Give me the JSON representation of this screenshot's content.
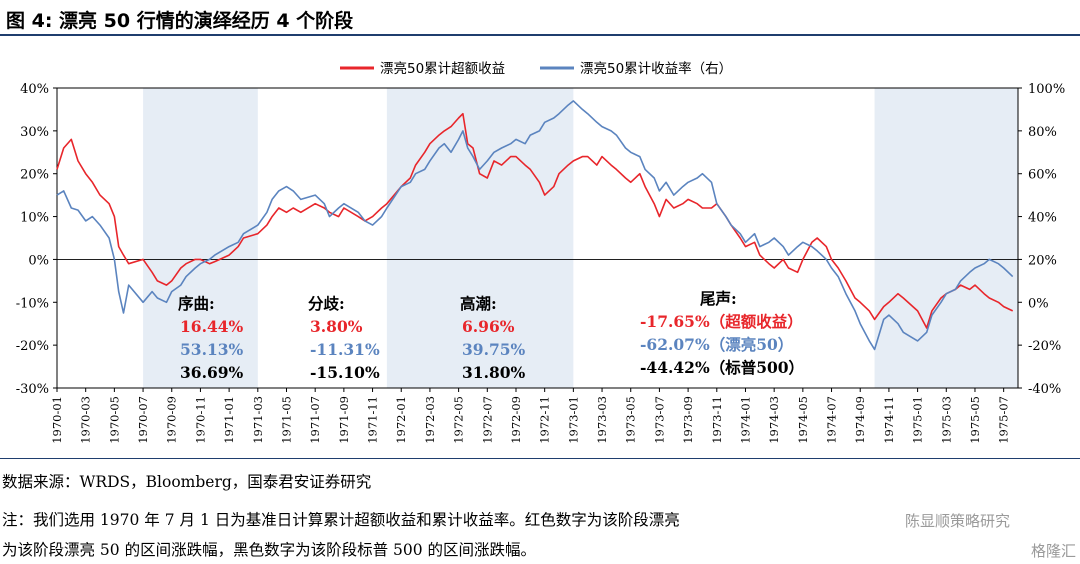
{
  "header": {
    "title": "图 4:  漂亮 50 行情的演绎经历 4 个阶段"
  },
  "footer": {
    "source": "数据来源：WRDS，Bloomberg，国泰君安证券研究",
    "note_line1": "注：我们选用 1970 年 7 月 1 日为基准日计算累计超额收益和累计收益率。红色数字为该阶段漂亮",
    "note_line2": "为该阶段漂亮 50 的区间涨跌幅，黑色数字为该阶段标普 500 的区间涨跌幅。",
    "watermark_1": "陈显顺策略研究",
    "watermark_2": "格隆汇"
  },
  "colors": {
    "red": "#e8262b",
    "blue": "#5b84bf",
    "black": "#000000",
    "shade": "#e6edf5"
  },
  "chart_data": {
    "type": "line",
    "legend": [
      "漂亮50累计超额收益",
      "漂亮50累计收益率（右）"
    ],
    "legend_position": "top-center",
    "y_left": {
      "min": -30,
      "max": 40,
      "ticks": [
        "40%",
        "30%",
        "20%",
        "10%",
        "0%",
        "-10%",
        "-20%",
        "-30%"
      ]
    },
    "y_right": {
      "min": -40,
      "max": 100,
      "ticks": [
        "100%",
        "80%",
        "60%",
        "40%",
        "20%",
        "0%",
        "-20%",
        "-40%"
      ]
    },
    "x_ticks": [
      "1970-01",
      "1970-03",
      "1970-05",
      "1970-07",
      "1970-09",
      "1970-11",
      "1971-01",
      "1971-03",
      "1971-05",
      "1971-07",
      "1971-09",
      "1971-11",
      "1972-01",
      "1972-03",
      "1972-05",
      "1972-07",
      "1972-09",
      "1972-11",
      "1973-01",
      "1973-03",
      "1973-05",
      "1973-07",
      "1973-09",
      "1973-11",
      "1974-01",
      "1974-03",
      "1974-05",
      "1974-07",
      "1974-09",
      "1974-11",
      "1975-01",
      "1975-03",
      "1975-05",
      "1975-07"
    ],
    "shaded_periods": [
      [
        "1970-07",
        "1971-03"
      ],
      [
        "1971-12",
        "1973-01"
      ],
      [
        "1974-10",
        "1975-08"
      ]
    ],
    "series": [
      {
        "name": "漂亮50累计超额收益",
        "axis": "left",
        "points": [
          [
            "1970-01",
            21
          ],
          [
            "1970-01-15",
            26
          ],
          [
            "1970-02",
            28
          ],
          [
            "1970-02-15",
            23
          ],
          [
            "1970-03",
            20
          ],
          [
            "1970-03-15",
            18
          ],
          [
            "1970-04",
            15
          ],
          [
            "1970-04-20",
            13
          ],
          [
            "1970-05",
            10
          ],
          [
            "1970-05-10",
            3
          ],
          [
            "1970-05-20",
            1
          ],
          [
            "1970-06",
            -1
          ],
          [
            "1970-07",
            0
          ],
          [
            "1970-07-20",
            -3
          ],
          [
            "1970-08",
            -5
          ],
          [
            "1970-08-20",
            -6
          ],
          [
            "1970-09",
            -5
          ],
          [
            "1970-09-20",
            -2
          ],
          [
            "1970-10",
            -1
          ],
          [
            "1970-10-20",
            0
          ],
          [
            "1970-11",
            0
          ],
          [
            "1970-11-20",
            -1
          ],
          [
            "1970-12",
            -0.5
          ],
          [
            "1971-01",
            1
          ],
          [
            "1971-01-20",
            3
          ],
          [
            "1971-02",
            5
          ],
          [
            "1971-03",
            6
          ],
          [
            "1971-03-20",
            8
          ],
          [
            "1971-04",
            10
          ],
          [
            "1971-04-15",
            12
          ],
          [
            "1971-05",
            11
          ],
          [
            "1971-05-15",
            12
          ],
          [
            "1971-06",
            11
          ],
          [
            "1971-07",
            13
          ],
          [
            "1971-07-20",
            12
          ],
          [
            "1971-08",
            11
          ],
          [
            "1971-08-20",
            10
          ],
          [
            "1971-09",
            12
          ],
          [
            "1971-10",
            10
          ],
          [
            "1971-10-15",
            9
          ],
          [
            "1971-11",
            10
          ],
          [
            "1971-11-20",
            12
          ],
          [
            "1971-12",
            13
          ],
          [
            "1972-01",
            17
          ],
          [
            "1972-01-20",
            19
          ],
          [
            "1972-02",
            22
          ],
          [
            "1972-02-20",
            25
          ],
          [
            "1972-03",
            27
          ],
          [
            "1972-03-20",
            29
          ],
          [
            "1972-04",
            30
          ],
          [
            "1972-04-15",
            31
          ],
          [
            "1972-05",
            33
          ],
          [
            "1972-05-10",
            34
          ],
          [
            "1972-05-20",
            27
          ],
          [
            "1972-06",
            26
          ],
          [
            "1972-06-15",
            20
          ],
          [
            "1972-07",
            19
          ],
          [
            "1972-07-15",
            23
          ],
          [
            "1972-08",
            22
          ],
          [
            "1972-08-20",
            24
          ],
          [
            "1972-09",
            24
          ],
          [
            "1972-09-20",
            22
          ],
          [
            "1972-10",
            21
          ],
          [
            "1972-10-20",
            18
          ],
          [
            "1972-11",
            15
          ],
          [
            "1972-11-20",
            17
          ],
          [
            "1972-12",
            20
          ],
          [
            "1972-12-20",
            22
          ],
          [
            "1973-01",
            23
          ],
          [
            "1973-01-20",
            24
          ],
          [
            "1973-02",
            24
          ],
          [
            "1973-02-20",
            22
          ],
          [
            "1973-03",
            24
          ],
          [
            "1973-03-20",
            22
          ],
          [
            "1973-04",
            21
          ],
          [
            "1973-04-20",
            19
          ],
          [
            "1973-05",
            18
          ],
          [
            "1973-05-20",
            20
          ],
          [
            "1973-06",
            17
          ],
          [
            "1973-06-20",
            13
          ],
          [
            "1973-07",
            10
          ],
          [
            "1973-07-15",
            14
          ],
          [
            "1973-08",
            12
          ],
          [
            "1973-08-20",
            13
          ],
          [
            "1973-09",
            14
          ],
          [
            "1973-09-20",
            13
          ],
          [
            "1973-10",
            12
          ],
          [
            "1973-10-20",
            12
          ],
          [
            "1973-11",
            13
          ],
          [
            "1973-11-20",
            10
          ],
          [
            "1973-12",
            8
          ],
          [
            "1973-12-20",
            5
          ],
          [
            "1974-01",
            3
          ],
          [
            "1974-01-20",
            4
          ],
          [
            "1974-02",
            1
          ],
          [
            "1974-02-20",
            -1
          ],
          [
            "1974-03",
            -2
          ],
          [
            "1974-03-20",
            0
          ],
          [
            "1974-04",
            -2
          ],
          [
            "1974-04-20",
            -3
          ],
          [
            "1974-05",
            0
          ],
          [
            "1974-05-20",
            4
          ],
          [
            "1974-06",
            5
          ],
          [
            "1974-06-20",
            3
          ],
          [
            "1974-07",
            0
          ],
          [
            "1974-07-15",
            -2
          ],
          [
            "1974-08",
            -5
          ],
          [
            "1974-08-20",
            -9
          ],
          [
            "1974-09",
            -10
          ],
          [
            "1974-09-20",
            -12
          ],
          [
            "1974-10",
            -14
          ],
          [
            "1974-10-20",
            -11
          ],
          [
            "1974-11",
            -10
          ],
          [
            "1974-11-20",
            -8
          ],
          [
            "1974-12",
            -9
          ],
          [
            "1975-01",
            -12
          ],
          [
            "1975-01-20",
            -16
          ],
          [
            "1975-02",
            -12
          ],
          [
            "1975-02-20",
            -9
          ],
          [
            "1975-03",
            -8
          ],
          [
            "1975-03-20",
            -7
          ],
          [
            "1975-04",
            -6
          ],
          [
            "1975-04-20",
            -7
          ],
          [
            "1975-05",
            -6
          ],
          [
            "1975-05-20",
            -8
          ],
          [
            "1975-06",
            -9
          ],
          [
            "1975-06-20",
            -10
          ],
          [
            "1975-07",
            -11
          ],
          [
            "1975-07-20",
            -12
          ]
        ]
      },
      {
        "name": "漂亮50累计收益率（右）",
        "axis": "right",
        "points": [
          [
            "1970-01",
            50
          ],
          [
            "1970-01-15",
            52
          ],
          [
            "1970-02",
            44
          ],
          [
            "1970-02-15",
            43
          ],
          [
            "1970-03",
            38
          ],
          [
            "1970-03-15",
            40
          ],
          [
            "1970-04",
            36
          ],
          [
            "1970-04-20",
            30
          ],
          [
            "1970-05",
            20
          ],
          [
            "1970-05-10",
            5
          ],
          [
            "1970-05-20",
            -5
          ],
          [
            "1970-06",
            8
          ],
          [
            "1970-07",
            0
          ],
          [
            "1970-07-20",
            5
          ],
          [
            "1970-08",
            2
          ],
          [
            "1970-08-20",
            0
          ],
          [
            "1970-09",
            5
          ],
          [
            "1970-09-20",
            8
          ],
          [
            "1970-10",
            12
          ],
          [
            "1970-10-20",
            16
          ],
          [
            "1970-11",
            18
          ],
          [
            "1970-11-20",
            20
          ],
          [
            "1970-12",
            22
          ],
          [
            "1971-01",
            26
          ],
          [
            "1971-01-20",
            28
          ],
          [
            "1971-02",
            32
          ],
          [
            "1971-03",
            36
          ],
          [
            "1971-03-20",
            42
          ],
          [
            "1971-04",
            48
          ],
          [
            "1971-04-15",
            52
          ],
          [
            "1971-05",
            54
          ],
          [
            "1971-05-15",
            52
          ],
          [
            "1971-06",
            48
          ],
          [
            "1971-07",
            50
          ],
          [
            "1971-07-20",
            46
          ],
          [
            "1971-08",
            40
          ],
          [
            "1971-08-20",
            44
          ],
          [
            "1971-09",
            46
          ],
          [
            "1971-10",
            42
          ],
          [
            "1971-10-15",
            38
          ],
          [
            "1971-11",
            36
          ],
          [
            "1971-11-20",
            40
          ],
          [
            "1971-12",
            44
          ],
          [
            "1972-01",
            54
          ],
          [
            "1972-01-20",
            56
          ],
          [
            "1972-02",
            60
          ],
          [
            "1972-02-20",
            62
          ],
          [
            "1972-03",
            66
          ],
          [
            "1972-03-20",
            72
          ],
          [
            "1972-04",
            74
          ],
          [
            "1972-04-15",
            70
          ],
          [
            "1972-05",
            76
          ],
          [
            "1972-05-10",
            80
          ],
          [
            "1972-05-20",
            72
          ],
          [
            "1972-06",
            68
          ],
          [
            "1972-06-15",
            62
          ],
          [
            "1972-07",
            66
          ],
          [
            "1972-07-15",
            70
          ],
          [
            "1972-08",
            72
          ],
          [
            "1972-08-20",
            74
          ],
          [
            "1972-09",
            76
          ],
          [
            "1972-09-20",
            74
          ],
          [
            "1972-10",
            78
          ],
          [
            "1972-10-20",
            80
          ],
          [
            "1972-11",
            84
          ],
          [
            "1972-11-20",
            86
          ],
          [
            "1972-12",
            88
          ],
          [
            "1972-12-20",
            92
          ],
          [
            "1973-01",
            94
          ],
          [
            "1973-01-20",
            90
          ],
          [
            "1973-02",
            88
          ],
          [
            "1973-02-20",
            84
          ],
          [
            "1973-03",
            82
          ],
          [
            "1973-03-20",
            80
          ],
          [
            "1973-04",
            78
          ],
          [
            "1973-04-20",
            72
          ],
          [
            "1973-05",
            70
          ],
          [
            "1973-05-20",
            68
          ],
          [
            "1973-06",
            62
          ],
          [
            "1973-06-20",
            58
          ],
          [
            "1973-07",
            52
          ],
          [
            "1973-07-15",
            56
          ],
          [
            "1973-08",
            50
          ],
          [
            "1973-08-20",
            54
          ],
          [
            "1973-09",
            56
          ],
          [
            "1973-09-20",
            58
          ],
          [
            "1973-10",
            60
          ],
          [
            "1973-10-20",
            56
          ],
          [
            "1973-11",
            46
          ],
          [
            "1973-11-20",
            40
          ],
          [
            "1973-12",
            36
          ],
          [
            "1973-12-20",
            32
          ],
          [
            "1974-01",
            28
          ],
          [
            "1974-01-20",
            32
          ],
          [
            "1974-02",
            26
          ],
          [
            "1974-02-20",
            28
          ],
          [
            "1974-03",
            30
          ],
          [
            "1974-03-20",
            26
          ],
          [
            "1974-04",
            22
          ],
          [
            "1974-04-20",
            26
          ],
          [
            "1974-05",
            28
          ],
          [
            "1974-05-20",
            26
          ],
          [
            "1974-06",
            24
          ],
          [
            "1974-06-20",
            20
          ],
          [
            "1974-07",
            16
          ],
          [
            "1974-07-15",
            12
          ],
          [
            "1974-08",
            4
          ],
          [
            "1974-08-20",
            -4
          ],
          [
            "1974-09",
            -10
          ],
          [
            "1974-09-20",
            -18
          ],
          [
            "1974-10",
            -22
          ],
          [
            "1974-10-20",
            -8
          ],
          [
            "1974-11",
            -6
          ],
          [
            "1974-11-20",
            -10
          ],
          [
            "1974-12",
            -14
          ],
          [
            "1975-01",
            -18
          ],
          [
            "1975-01-20",
            -14
          ],
          [
            "1975-02",
            -6
          ],
          [
            "1975-02-20",
            0
          ],
          [
            "1975-03",
            4
          ],
          [
            "1975-03-20",
            6
          ],
          [
            "1975-04",
            10
          ],
          [
            "1975-04-20",
            14
          ],
          [
            "1975-05",
            16
          ],
          [
            "1975-05-20",
            18
          ],
          [
            "1975-06",
            20
          ],
          [
            "1975-06-20",
            18
          ],
          [
            "1975-07",
            16
          ],
          [
            "1975-07-20",
            12
          ]
        ]
      }
    ],
    "annotations": [
      {
        "stage": "序曲:",
        "red": "16.44%",
        "blue": "53.13%",
        "black": "36.69%"
      },
      {
        "stage": "分歧:",
        "red": "3.80%",
        "blue": "-11.31%",
        "black": "-15.10%"
      },
      {
        "stage": "高潮:",
        "red": "6.96%",
        "blue": "39.75%",
        "black": "31.80%"
      },
      {
        "stage": "尾声:",
        "red": "-17.65%（超额收益）",
        "blue": "-62.07%（漂亮50）",
        "black": "-44.42%（标普500）"
      }
    ]
  }
}
